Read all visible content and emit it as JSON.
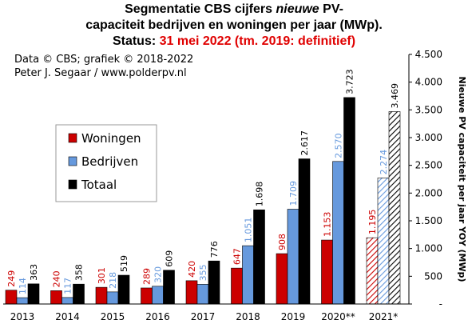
{
  "title": {
    "line1_a": "Segmentatie CBS cijfers ",
    "line1_b": "nieuwe",
    "line1_c": " PV-",
    "line2": "capaciteit bedrijven en woningen per jaar (MWp).",
    "line3_a": "Status: ",
    "line3_b": "31 mei 2022  (tm. 2019: definitief)"
  },
  "credits": {
    "line1": "Data © CBS; grafiek © 2018-2022",
    "line2": "Peter J. Segaar / www.polderpv.nl"
  },
  "colors": {
    "woningen": "#cc0000",
    "bedrijven": "#6699dd",
    "totaal": "#000000",
    "title_red": "#e00000"
  },
  "chart_data": {
    "type": "bar",
    "categories": [
      "2013",
      "2014",
      "2015",
      "2016",
      "2017",
      "2018",
      "2019",
      "2020**",
      "2021*"
    ],
    "series": [
      {
        "name": "Woningen",
        "values": [
          249,
          240,
          301,
          289,
          420,
          647,
          908,
          1153,
          1195
        ],
        "labels": [
          "249",
          "240",
          "301",
          "289",
          "420",
          "647",
          "908",
          "1.153",
          "1.195"
        ]
      },
      {
        "name": "Bedrijven",
        "values": [
          114,
          117,
          218,
          320,
          355,
          1051,
          1709,
          2570,
          2274
        ],
        "labels": [
          "114",
          "117",
          "218",
          "320",
          "355",
          "1.051",
          "1.709",
          "2.570",
          "2.274"
        ]
      },
      {
        "name": "Totaal",
        "values": [
          363,
          358,
          519,
          609,
          776,
          1698,
          2617,
          3723,
          3469
        ],
        "labels": [
          "363",
          "358",
          "519",
          "609",
          "776",
          "1.698",
          "2.617",
          "3.723",
          "3.469"
        ]
      }
    ],
    "hatched_categories": [
      "2021*"
    ],
    "ylabel": "Nieuwe PV capaciteit per jaar YOY (MWp)",
    "ylim": [
      0,
      4500
    ],
    "yticks": [
      0,
      500,
      1000,
      1500,
      2000,
      2500,
      3000,
      3500,
      4000,
      4500
    ],
    "ytick_labels": [
      "-",
      "500",
      "1.000",
      "1.500",
      "2.000",
      "2.500",
      "3.000",
      "3.500",
      "4.000",
      "4.500"
    ],
    "legend": {
      "placement": "left-middle",
      "entries": [
        "Woningen",
        "Bedrijven",
        "Totaal"
      ]
    },
    "grid": false,
    "y_axis_side": "right"
  }
}
